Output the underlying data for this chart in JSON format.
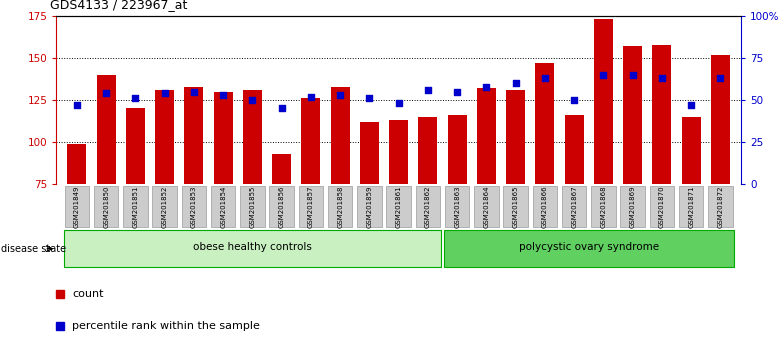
{
  "title": "GDS4133 / 223967_at",
  "samples": [
    "GSM201849",
    "GSM201850",
    "GSM201851",
    "GSM201852",
    "GSM201853",
    "GSM201854",
    "GSM201855",
    "GSM201856",
    "GSM201857",
    "GSM201858",
    "GSM201859",
    "GSM201861",
    "GSM201862",
    "GSM201863",
    "GSM201864",
    "GSM201865",
    "GSM201866",
    "GSM201867",
    "GSM201868",
    "GSM201869",
    "GSM201870",
    "GSM201871",
    "GSM201872"
  ],
  "counts": [
    99,
    140,
    120,
    131,
    133,
    130,
    131,
    93,
    126,
    133,
    112,
    113,
    115,
    116,
    132,
    131,
    147,
    116,
    173,
    157,
    158,
    115,
    152
  ],
  "percentiles": [
    47,
    54,
    51,
    54,
    55,
    53,
    50,
    45,
    52,
    53,
    51,
    48,
    56,
    55,
    58,
    60,
    63,
    50,
    65,
    65,
    63,
    47,
    63
  ],
  "group_labels": [
    "obese healthy controls",
    "polycystic ovary syndrome"
  ],
  "group_ranges": [
    [
      0,
      13
    ],
    [
      13,
      23
    ]
  ],
  "group_facecolors": [
    "#c8f0c0",
    "#60d060"
  ],
  "group_edgecolor": "#00aa00",
  "bar_color": "#CC0000",
  "percentile_color": "#0000CC",
  "ylim_left": [
    75,
    175
  ],
  "ylim_right": [
    0,
    100
  ],
  "yticks_left": [
    75,
    100,
    125,
    150,
    175
  ],
  "yticks_right": [
    0,
    25,
    50,
    75,
    100
  ],
  "ytick_labels_right": [
    "0",
    "25",
    "50",
    "75",
    "100%"
  ],
  "background_color": "#ffffff"
}
